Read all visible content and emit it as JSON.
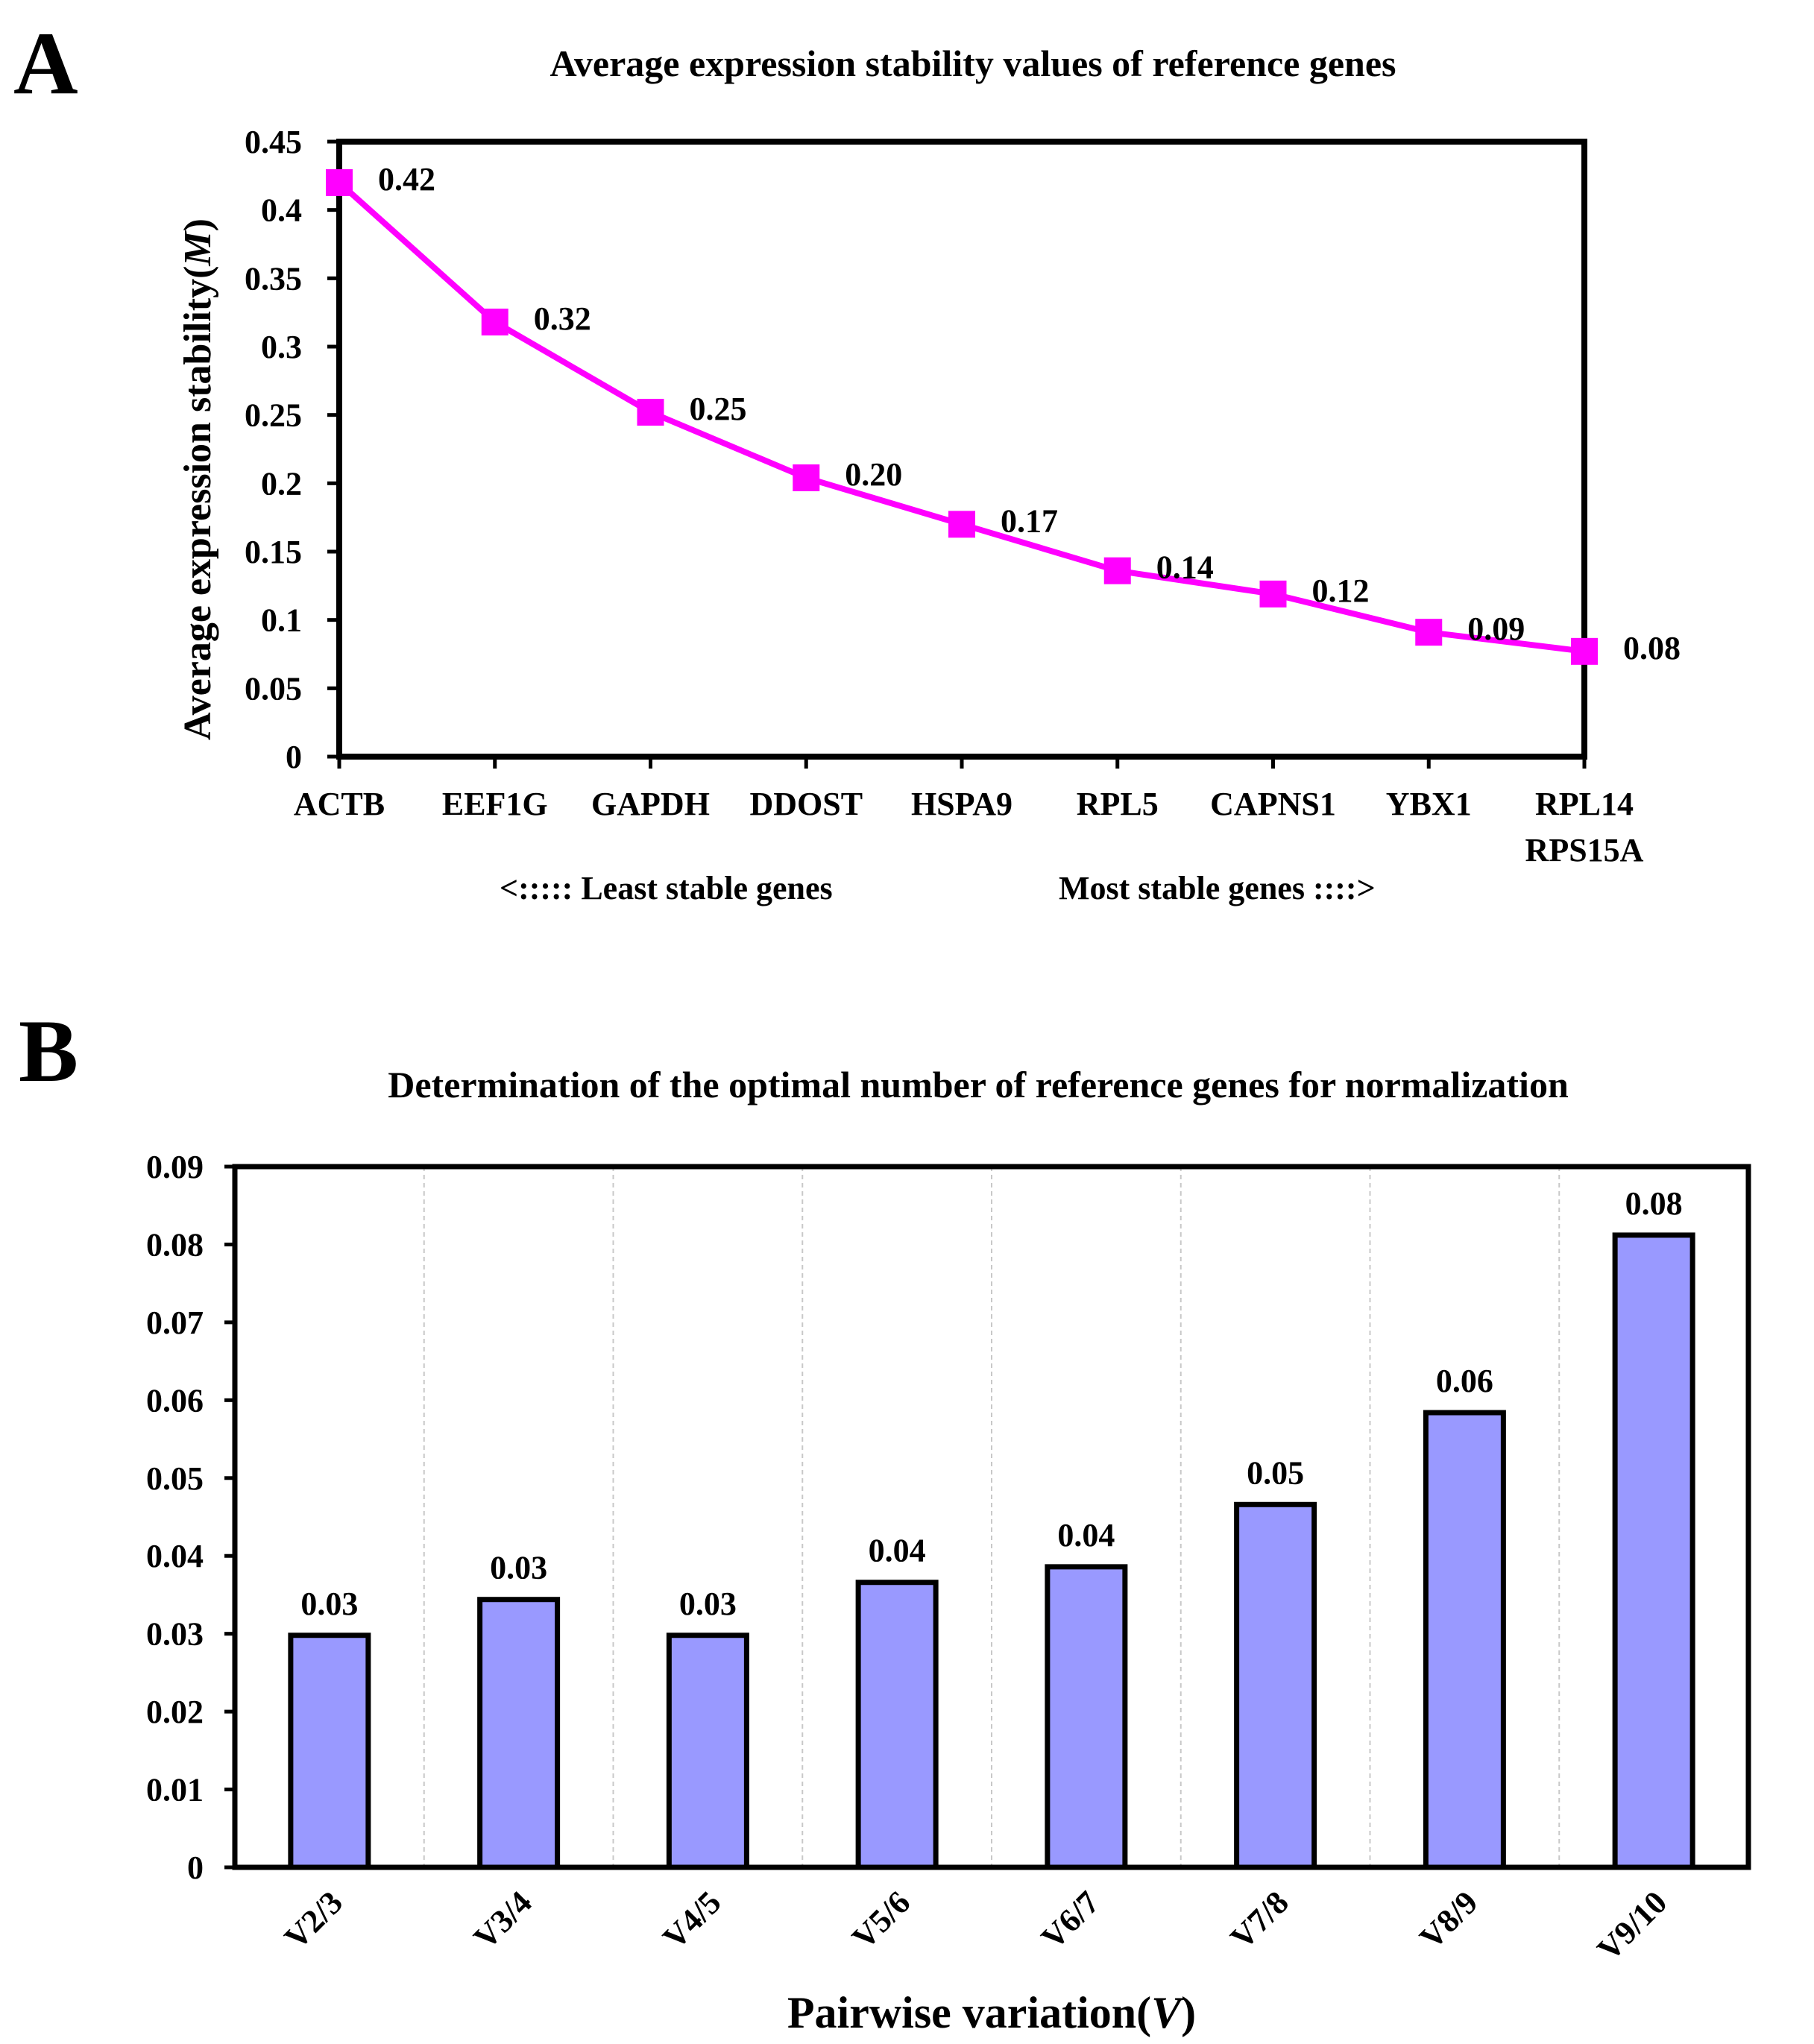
{
  "chart_data": [
    {
      "panel": "A",
      "type": "line",
      "title": "Average expression stability values of reference genes",
      "ylabel": "Average expression stability(M)",
      "ylabel_main": "Average expression stability(",
      "ylabel_italic": "M",
      "ylabel_close": ")",
      "ylim": [
        0,
        0.45
      ],
      "yticks": [
        "0",
        "0.05",
        "0.1",
        "0.15",
        "0.2",
        "0.25",
        "0.3",
        "0.35",
        "0.4",
        "0.45"
      ],
      "categories": [
        "ACTB",
        "EEF1G",
        "GAPDH",
        "DDOST",
        "HSPA9",
        "RPL5",
        "CAPNS1",
        "YBX1",
        "RPL14\nRPS15A"
      ],
      "category_lines": [
        [
          "ACTB"
        ],
        [
          "EEF1G"
        ],
        [
          "GAPDH"
        ],
        [
          "DDOST"
        ],
        [
          "HSPA9"
        ],
        [
          "RPL5"
        ],
        [
          "CAPNS1"
        ],
        [
          "YBX1"
        ],
        [
          "RPL14",
          "RPS15A"
        ]
      ],
      "values": [
        0.42,
        0.318,
        0.252,
        0.204,
        0.17,
        0.136,
        0.119,
        0.091,
        0.077
      ],
      "data_labels": [
        "0.42",
        "0.32",
        "0.25",
        "0.20",
        "0.17",
        "0.14",
        "0.12",
        "0.09",
        "0.08"
      ],
      "annotation_left": "<:::::  Least stable genes",
      "annotation_right": "Most stable genes ::::>",
      "color": "#ff00ff",
      "grid": false
    },
    {
      "panel": "B",
      "type": "bar",
      "title": "Determination of the optimal number of reference genes for normalization",
      "xlabel": "Pairwise variation(V)",
      "xlabel_main": "Pairwise variation(",
      "xlabel_italic": "V",
      "xlabel_close": ")",
      "ylim": [
        0,
        0.09
      ],
      "yticks": [
        "0",
        "0.01",
        "0.02",
        "0.03",
        "0.04",
        "0.05",
        "0.06",
        "0.07",
        "0.08",
        "0.09"
      ],
      "categories": [
        "V2/3",
        "V3/4",
        "V4/5",
        "V5/6",
        "V6/7",
        "V7/8",
        "V8/9",
        "V9/10"
      ],
      "values": [
        0.0298,
        0.0344,
        0.0298,
        0.0366,
        0.0386,
        0.0466,
        0.0584,
        0.0812
      ],
      "data_labels": [
        "0.03",
        "0.03",
        "0.03",
        "0.04",
        "0.04",
        "0.05",
        "0.06",
        "0.08"
      ],
      "color": "#9999ff",
      "grid": true
    }
  ]
}
